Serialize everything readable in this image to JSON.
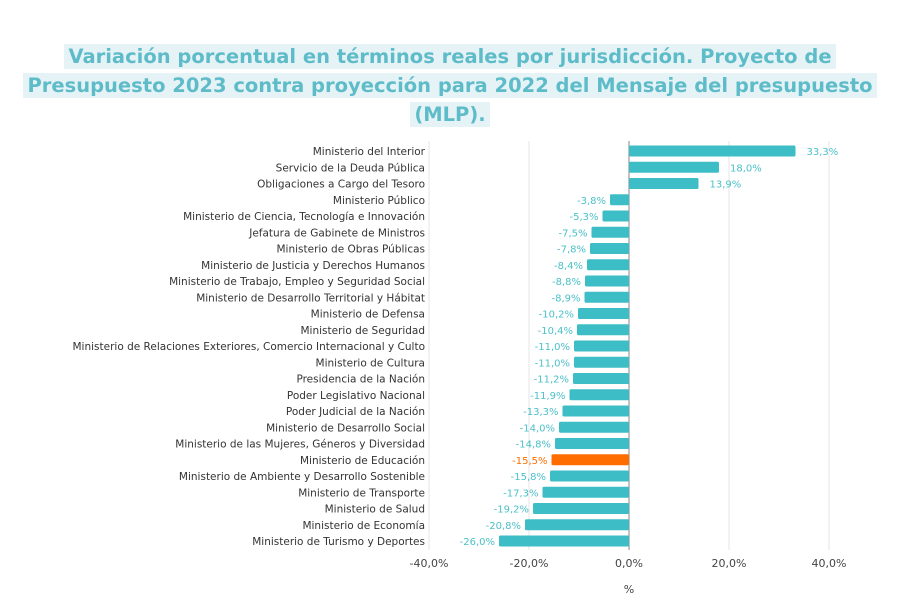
{
  "chart_data": {
    "type": "bar",
    "orientation": "horizontal",
    "title": "Variación porcentual en términos reales por jurisdicción. Proyecto de Presupuesto 2023 contra proyección para 2022 del Mensaje del presupuesto (MLP).",
    "xlabel": "%",
    "ylabel": "",
    "xlim": [
      -40,
      40
    ],
    "xticks": [
      "-40,0%",
      "-20,0%",
      "0,0%",
      "20,0%",
      "40,0%"
    ],
    "xtick_values": [
      -40,
      -20,
      0,
      20,
      40
    ],
    "grid": "vertical",
    "colors": {
      "default": "#3dbdc6",
      "highlight": "#ff6d00",
      "axis": "#999999",
      "grid": "#e4e4e4"
    },
    "highlight": "Ministerio de Educación",
    "categories": [
      "Ministerio del Interior",
      "Servicio de la Deuda Pública",
      "Obligaciones a Cargo del Tesoro",
      "Ministerio Público",
      "Ministerio de Ciencia, Tecnología e Innovación",
      "Jefatura de Gabinete de Ministros",
      "Ministerio de Obras Públicas",
      "Ministerio de Justicia y Derechos Humanos",
      "Ministerio de Trabajo, Empleo y Seguridad Social",
      "Ministerio de Desarrollo Territorial y Hábitat",
      "Ministerio de Defensa",
      "Ministerio de Seguridad",
      "Ministerio de Relaciones Exteriores, Comercio Internacional y Culto",
      "Ministerio de Cultura",
      "Presidencia de la Nación",
      "Poder Legislativo Nacional",
      "Poder Judicial de la Nación",
      "Ministerio de Desarrollo Social",
      "Ministerio de las Mujeres, Géneros y Diversidad",
      "Ministerio de Educación",
      "Ministerio de Ambiente y Desarrollo Sostenible",
      "Ministerio de Transporte",
      "Ministerio de Salud",
      "Ministerio de Economía",
      "Ministerio de Turismo y Deportes"
    ],
    "values": [
      33.3,
      18.0,
      13.9,
      -3.8,
      -5.3,
      -7.5,
      -7.8,
      -8.4,
      -8.8,
      -8.9,
      -10.2,
      -10.4,
      -11.0,
      -11.0,
      -11.2,
      -11.9,
      -13.3,
      -14.0,
      -14.8,
      -15.5,
      -15.8,
      -17.3,
      -19.2,
      -20.8,
      -26.0
    ],
    "data_labels": [
      "33,3%",
      "18,0%",
      "13,9%",
      "-3,8%",
      "-5,3%",
      "-7,5%",
      "-7,8%",
      "-8,4%",
      "-8,8%",
      "-8,9%",
      "-10,2%",
      "-10,4%",
      "-11,0%",
      "-11,0%",
      "-11,2%",
      "-11,9%",
      "-13,3%",
      "-14,0%",
      "-14,8%",
      "-15,5%",
      "-15,8%",
      "-17,3%",
      "-19,2%",
      "-20,8%",
      "-26,0%"
    ]
  }
}
